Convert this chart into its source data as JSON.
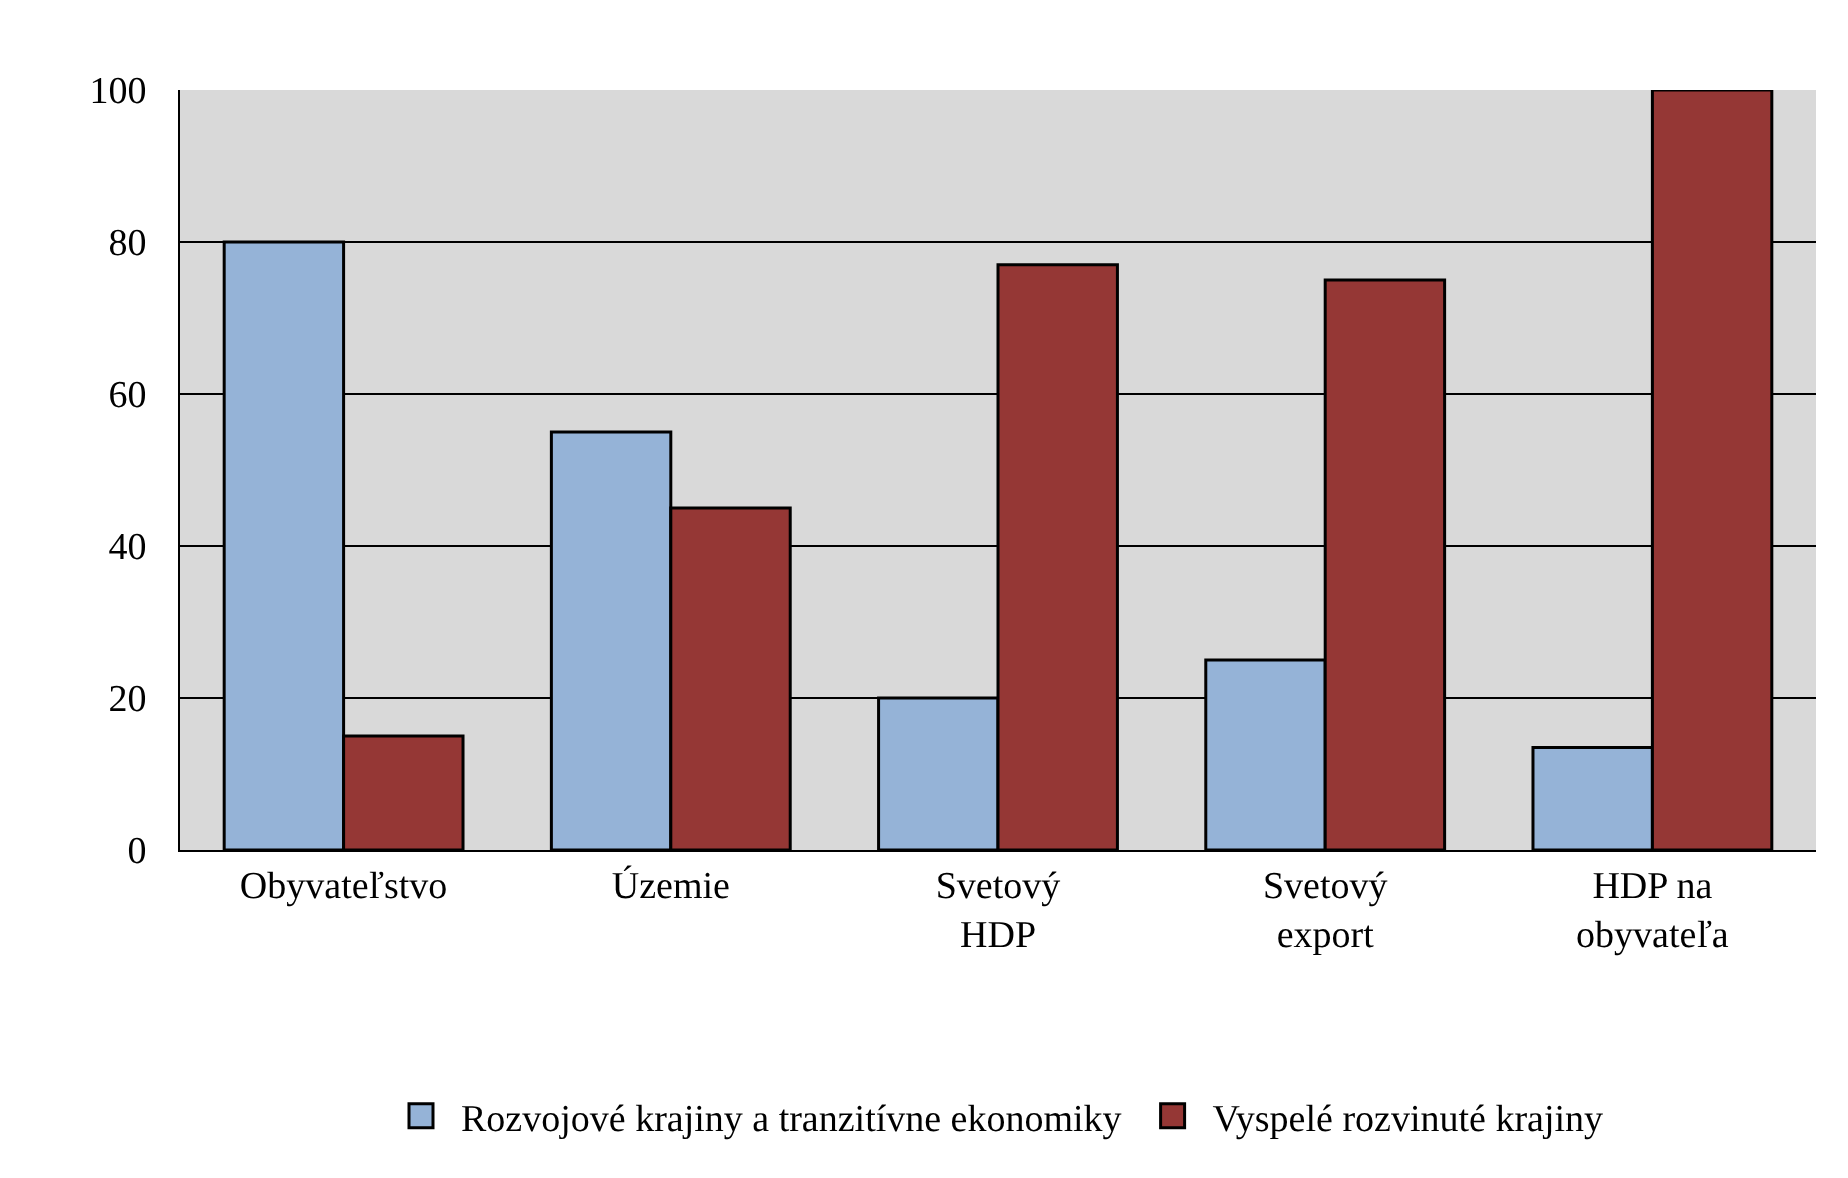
{
  "chart_data": {
    "type": "bar",
    "categories": [
      "Obyvateľstvo",
      "Územie",
      "Svetový\nHDP",
      "Svetový\nexport",
      "HDP na\nobyvateľa"
    ],
    "series": [
      {
        "name": "Rozvojové krajiny a tranzitívne ekonomiky",
        "color": "#95b3d7",
        "values": [
          80,
          55,
          20,
          25,
          13.5
        ]
      },
      {
        "name": "Vyspelé rozvinuté krajiny",
        "color": "#953735",
        "values": [
          15,
          45,
          77,
          75,
          100
        ]
      }
    ],
    "ylim": [
      0,
      100
    ],
    "yticks": [
      0,
      20,
      40,
      60,
      80,
      100
    ],
    "grid": "y",
    "legend": "bottom"
  }
}
